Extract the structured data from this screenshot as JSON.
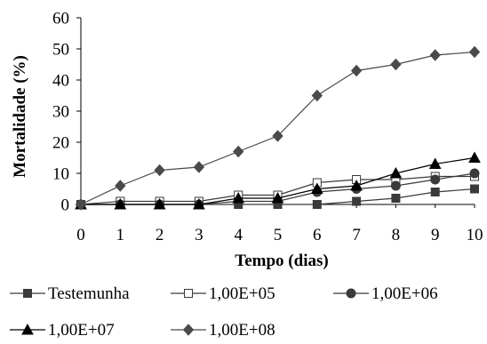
{
  "chart_data": {
    "type": "line",
    "title": "",
    "xlabel": "Tempo (dias)",
    "ylabel": "Mortalidade (%)",
    "x": [
      0,
      1,
      2,
      3,
      4,
      5,
      6,
      7,
      8,
      9,
      10
    ],
    "xticks": [
      "0",
      "1",
      "2",
      "3",
      "4",
      "5",
      "6",
      "7",
      "8",
      "9",
      "10"
    ],
    "yticks": [
      "0",
      "10",
      "20",
      "30",
      "40",
      "50",
      "60"
    ],
    "xlim": [
      0,
      10
    ],
    "ylim": [
      0,
      60
    ],
    "grid": false,
    "legend_position": "bottom",
    "series": [
      {
        "name": "Testemunha",
        "marker": "square-filled",
        "color": "#3a3a3a",
        "values": [
          0,
          0,
          0,
          0,
          0,
          0,
          0,
          1,
          2,
          4,
          5
        ]
      },
      {
        "name": "1,00E+05",
        "marker": "square-open",
        "color": "#3a3a3a",
        "values": [
          0,
          1,
          1,
          1,
          3,
          3,
          7,
          8,
          8,
          9,
          9
        ]
      },
      {
        "name": "1,00E+06",
        "marker": "circle-filled",
        "color": "#3a3a3a",
        "values": [
          0,
          0,
          0,
          0,
          1,
          1,
          4,
          5,
          6,
          8,
          10
        ]
      },
      {
        "name": "1,00E+07",
        "marker": "triangle-filled",
        "color": "#000000",
        "values": [
          0,
          0,
          0,
          0,
          2,
          2,
          5,
          6,
          10,
          13,
          15
        ]
      },
      {
        "name": "1,00E+08",
        "marker": "diamond-filled",
        "color": "#4a4a4a",
        "values": [
          0,
          6,
          11,
          12,
          17,
          22,
          35,
          43,
          45,
          48,
          49
        ]
      }
    ]
  }
}
